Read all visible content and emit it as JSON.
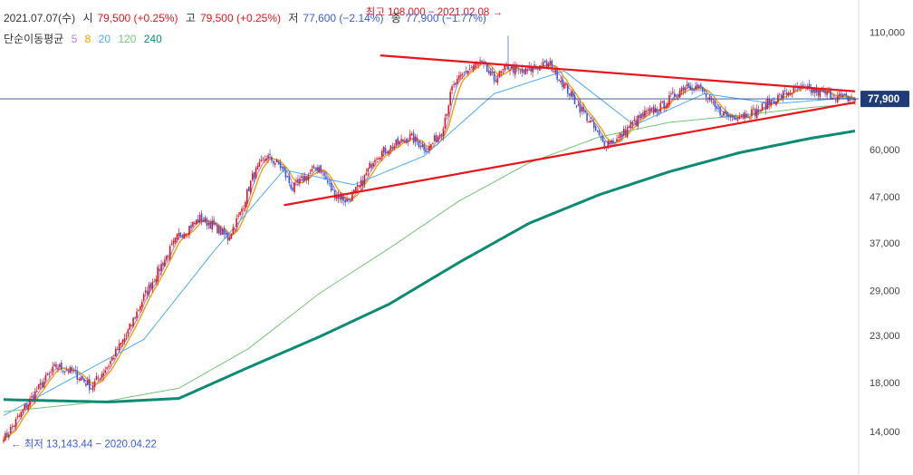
{
  "header": {
    "date": "2021.07.07(수)",
    "open_label": "시",
    "open_value": "79,500 (+0.25%)",
    "high_label": "고",
    "high_value": "79,500 (+0.25%)",
    "low_label": "저",
    "low_value": "77,600 (−2.14%)",
    "close_label": "종",
    "close_value": "77,900 (−1.77%)"
  },
  "ma_legend": {
    "title": "단순이동평균",
    "periods": [
      {
        "label": "5",
        "color": "#b57edc"
      },
      {
        "label": "8",
        "color": "#f59f00"
      },
      {
        "label": "20",
        "color": "#4dabf7"
      },
      {
        "label": "120",
        "color": "#74c476"
      },
      {
        "label": "240",
        "color": "#0b8a74"
      }
    ]
  },
  "annotations": {
    "high": "최고 108,000 − 2021.02.08 →",
    "low": "← 최저 13,143.44 − 2020.04.22"
  },
  "colors": {
    "up": "#e0161f",
    "down": "#3b5bdb",
    "trendline": "#e8141b",
    "price_tag": "#1f3c78"
  },
  "chart_data": {
    "type": "candlestick",
    "y_scale": "log",
    "y_axis_ticks": [
      "110,000",
      "77,900",
      "60,000",
      "47,000",
      "37,000",
      "29,000",
      "23,000",
      "18,000",
      "14,000"
    ],
    "y_axis_tick_values": [
      110000,
      77900,
      60000,
      47000,
      37000,
      29000,
      23000,
      18000,
      14000
    ],
    "ylim": [
      11500,
      125000
    ],
    "current_price": 77900,
    "current_price_label": "77,900",
    "date_range": [
      "2020.04.22",
      "2021.07.07"
    ],
    "key_points": [
      {
        "label": "최저",
        "date": "2020.04.22",
        "value": 13143.44
      },
      {
        "label": "최고",
        "date": "2021.02.08",
        "value": 108000
      }
    ],
    "price_path": [
      [
        0,
        13400
      ],
      [
        12,
        15800
      ],
      [
        20,
        17500
      ],
      [
        30,
        19600
      ],
      [
        40,
        19000
      ],
      [
        50,
        17600
      ],
      [
        60,
        19800
      ],
      [
        70,
        23000
      ],
      [
        80,
        28000
      ],
      [
        90,
        33000
      ],
      [
        100,
        38500
      ],
      [
        112,
        42000
      ],
      [
        120,
        40500
      ],
      [
        128,
        38000
      ],
      [
        135,
        43000
      ],
      [
        142,
        52000
      ],
      [
        150,
        58000
      ],
      [
        158,
        55000
      ],
      [
        165,
        49000
      ],
      [
        172,
        52000
      ],
      [
        180,
        55000
      ],
      [
        188,
        48000
      ],
      [
        196,
        46000
      ],
      [
        204,
        50000
      ],
      [
        212,
        58000
      ],
      [
        222,
        61000
      ],
      [
        232,
        64000
      ],
      [
        242,
        60000
      ],
      [
        250,
        66000
      ],
      [
        256,
        82000
      ],
      [
        264,
        90000
      ],
      [
        272,
        94000
      ],
      [
        280,
        86000
      ],
      [
        288,
        92000
      ],
      [
        296,
        89000
      ],
      [
        304,
        92000
      ],
      [
        312,
        93000
      ],
      [
        318,
        86000
      ],
      [
        326,
        77000
      ],
      [
        334,
        70000
      ],
      [
        342,
        62000
      ],
      [
        350,
        63000
      ],
      [
        358,
        68000
      ],
      [
        366,
        72000
      ],
      [
        374,
        74000
      ],
      [
        382,
        79000
      ],
      [
        390,
        84000
      ],
      [
        398,
        82000
      ],
      [
        406,
        74000
      ],
      [
        414,
        71000
      ],
      [
        422,
        72000
      ],
      [
        430,
        73000
      ],
      [
        438,
        77000
      ],
      [
        446,
        80000
      ],
      [
        454,
        82000
      ],
      [
        462,
        81000
      ],
      [
        470,
        80000
      ],
      [
        480,
        78000
      ],
      [
        486,
        77900
      ]
    ],
    "ma_lines": [
      {
        "name": "20",
        "points": [
          [
            0,
            15200
          ],
          [
            40,
            18500
          ],
          [
            80,
            22500
          ],
          [
            120,
            35500
          ],
          [
            160,
            54000
          ],
          [
            200,
            50000
          ],
          [
            240,
            58000
          ],
          [
            280,
            80000
          ],
          [
            320,
            90000
          ],
          [
            360,
            68000
          ],
          [
            400,
            80000
          ],
          [
            440,
            76000
          ],
          [
            486,
            78500
          ]
        ]
      },
      {
        "name": "120",
        "points": [
          [
            0,
            15500
          ],
          [
            60,
            16400
          ],
          [
            100,
            17500
          ],
          [
            140,
            21500
          ],
          [
            180,
            28500
          ],
          [
            220,
            36000
          ],
          [
            260,
            46000
          ],
          [
            300,
            56000
          ],
          [
            340,
            64000
          ],
          [
            380,
            69000
          ],
          [
            420,
            71500
          ],
          [
            460,
            74500
          ],
          [
            486,
            76000
          ]
        ]
      },
      {
        "name": "240",
        "points": [
          [
            0,
            16500
          ],
          [
            60,
            16300
          ],
          [
            100,
            16600
          ],
          [
            140,
            19500
          ],
          [
            180,
            22800
          ],
          [
            220,
            27000
          ],
          [
            260,
            33500
          ],
          [
            300,
            41000
          ],
          [
            340,
            47500
          ],
          [
            380,
            53500
          ],
          [
            420,
            59000
          ],
          [
            460,
            63500
          ],
          [
            486,
            66000
          ]
        ]
      }
    ],
    "trendlines": [
      {
        "name": "upper",
        "points": [
          [
            215,
            97500
          ],
          [
            486,
            81000
          ]
        ]
      },
      {
        "name": "lower",
        "points": [
          [
            160,
            45000
          ],
          [
            486,
            76500
          ]
        ]
      }
    ]
  }
}
